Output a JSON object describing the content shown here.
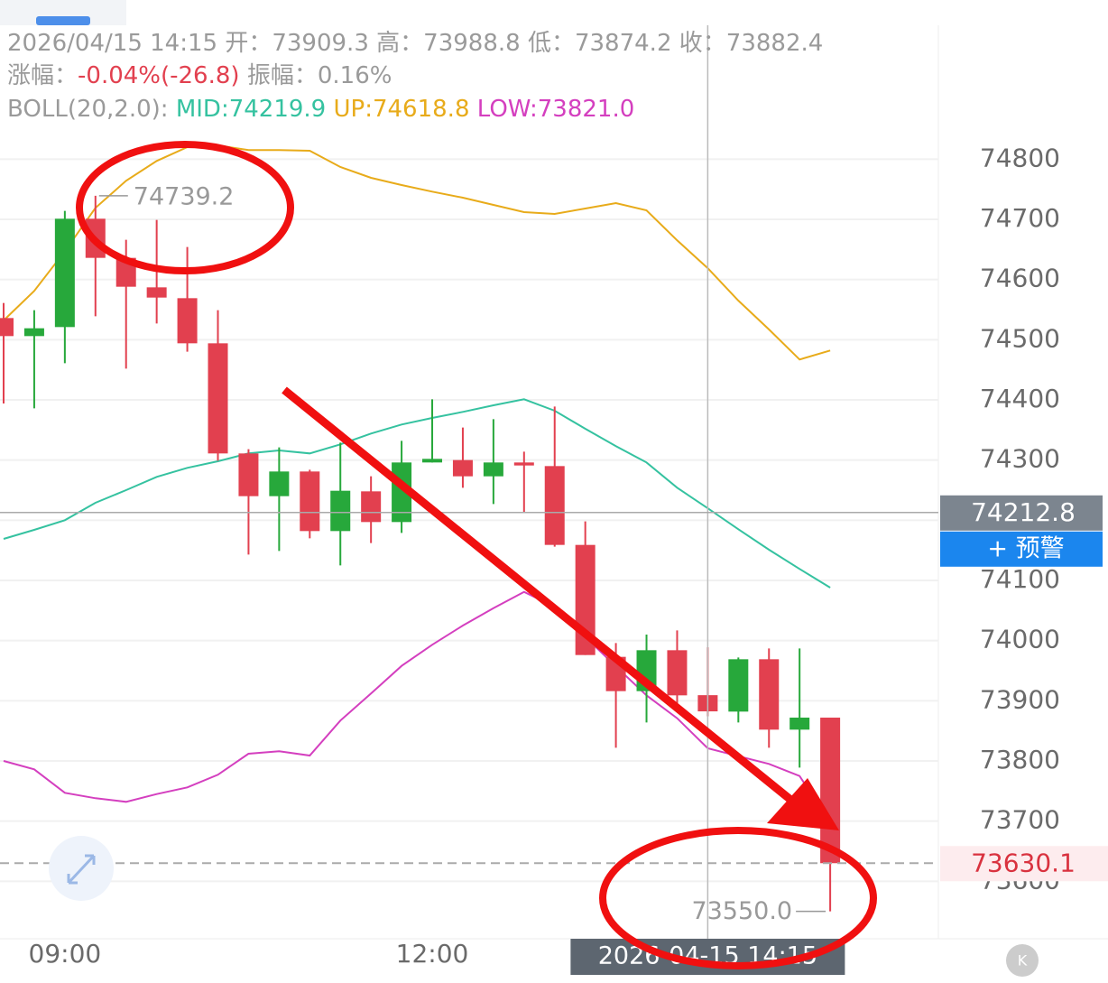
{
  "chart_data": {
    "type": "candlestick",
    "header": {
      "time": "2026/04/15 14:15",
      "open_label": "开：",
      "high_label": "高：",
      "low_label": "低：",
      "close_label": "收：",
      "change_label": "涨幅：",
      "change": "-0.04%(-26.8)",
      "amplitude_label": "振幅：",
      "amplitude": "0.16%",
      "boll_title": "BOLL(20,2.0):",
      "boll_mid": "MID:74219.9",
      "boll_up": "UP:74618.8",
      "boll_low": "LOW:73821.0"
    },
    "categories": [
      null,
      null,
      null,
      null,
      null,
      null,
      null,
      null,
      null,
      null,
      null,
      null,
      null,
      null,
      null,
      null,
      null,
      null,
      null,
      null,
      null,
      null,
      null,
      null,
      null,
      null,
      null,
      null
    ],
    "xticks": [
      {
        "value": 2,
        "label": "09:00"
      },
      {
        "value": 14,
        "label": "12:00"
      }
    ],
    "open": [
      74536,
      74506,
      74521,
      74701,
      74636,
      74587,
      74569,
      74494,
      74311,
      74240,
      74281,
      74182,
      74248,
      74197,
      74296,
      74300,
      74273,
      74296,
      74290,
      74159,
      73973,
      73916,
      73984,
      73909.3,
      73882,
      73969,
      73852,
      73872
    ],
    "high": [
      74561,
      74549,
      74714,
      74739.2,
      74666,
      74699,
      74654,
      74549,
      74318,
      74321,
      74284,
      74329,
      74273,
      74332,
      74401,
      74354,
      74368,
      74314,
      74389,
      74198,
      73996,
      74010,
      74017,
      73988.8,
      73972,
      73987,
      73987,
      73872
    ],
    "low": [
      74394,
      74386,
      74461,
      74539,
      74452,
      74527,
      74480,
      74299,
      74143,
      74149,
      74170,
      74125,
      74162,
      74179,
      74296,
      74254,
      74227,
      74212,
      74156,
      73976,
      73822,
      73864,
      73886,
      73874.2,
      73864,
      73822,
      73789,
      73550
    ],
    "close": [
      74506,
      74519,
      74701,
      74636,
      74588,
      74570,
      74494,
      74311,
      74240,
      74281,
      74182,
      74249,
      74197,
      74296,
      74302,
      74273,
      74296,
      74291,
      74159,
      73976,
      73916,
      73984,
      73909,
      73882.4,
      73969,
      73852,
      73872,
      73630.1
    ],
    "up_color": "#27a83b",
    "down_color": "#e2404f",
    "lines": [
      {
        "color": "#e8ab1a",
        "values": [
          74532,
          74581,
          74647,
          74719,
          74764,
          74797,
          74820,
          74823,
          74815,
          74815,
          74814,
          74787,
          74769,
          74757,
          74746,
          74736,
          74724,
          74712,
          74709,
          74718,
          74727,
          74715,
          74665,
          74618.8,
          74565,
          74517,
          74467,
          74482
        ]
      },
      {
        "color": "#35c2a0",
        "values": [
          74169,
          74184,
          74200,
          74229,
          74250,
          74272,
          74287,
          74298,
          74311,
          74316,
          74311,
          74326,
          74344,
          74359,
          74370,
          74380,
          74391,
          74401,
          74382,
          74352,
          74323,
          74296,
          74254,
          74219.9,
          74185,
          74151,
          74119,
          74088
        ]
      },
      {
        "color": "#d43fbf",
        "values": [
          73800,
          73786,
          73747,
          73738,
          73732,
          73745,
          73756,
          73777,
          73812,
          73816,
          73809,
          73867,
          73912,
          73958,
          73993,
          74025,
          74054,
          74081,
          74056,
          74006,
          73957,
          73909,
          73871,
          73821,
          73808,
          73795,
          73775,
          73697
        ]
      }
    ],
    "ylim": [
      73500,
      75000
    ],
    "yticks": [
      73600,
      73700,
      73800,
      73900,
      74000,
      74100,
      74200,
      74300,
      74400,
      74500,
      74600,
      74700,
      74800
    ],
    "grid": true,
    "current_price": 74212.8,
    "alert_button": "+ 预警",
    "last_price": 73630.1,
    "high_marker_index": 3,
    "low_marker": "73550.0",
    "crosshair_index": 23,
    "crosshair_label": "2026-04-15 14:15"
  }
}
